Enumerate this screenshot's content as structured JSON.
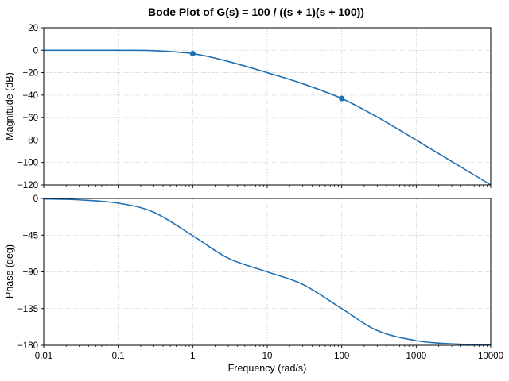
{
  "chart_data": {
    "title": "Bode Plot of G(s) = 100 / ((s + 1)(s + 100))",
    "xlabel": "Frequency (rad/s)",
    "x_scale": "log",
    "xlim": [
      0.01,
      10000
    ],
    "x_ticks": [
      0.01,
      0.1,
      1,
      10,
      100,
      1000,
      10000
    ],
    "x_tick_labels": [
      "0.01",
      "0.1",
      "1",
      "10",
      "100",
      "1000",
      "10000"
    ],
    "grid": true,
    "line_color": "#1f6fb4",
    "subplots": [
      {
        "type": "line",
        "name": "magnitude",
        "ylabel": "Magnitude (dB)",
        "ylim": [
          -120,
          20
        ],
        "y_ticks": [
          20,
          0,
          -20,
          -40,
          -60,
          -80,
          -100,
          -120
        ],
        "y_tick_labels": [
          "20",
          "0",
          "−20",
          "−40",
          "−60",
          "−80",
          "−100",
          "−120"
        ],
        "x": [
          0.01,
          0.1,
          0.3,
          1,
          3,
          10,
          30,
          100,
          300,
          1000,
          3000,
          10000
        ],
        "y": [
          0,
          -0.04,
          -0.4,
          -3.0,
          -10.0,
          -20.0,
          -29.9,
          -43.0,
          -59.5,
          -80.0,
          -99.1,
          -120.0
        ],
        "markers": [
          {
            "x": 1,
            "y": -3.0
          },
          {
            "x": 100,
            "y": -43.0
          }
        ]
      },
      {
        "type": "line",
        "name": "phase",
        "ylabel": "Phase (deg)",
        "ylim": [
          -180,
          0
        ],
        "y_ticks": [
          0,
          -45,
          -90,
          -135,
          -180
        ],
        "y_tick_labels": [
          "0",
          "−45",
          "−90",
          "−135",
          "−180"
        ],
        "x": [
          0.01,
          0.03,
          0.1,
          0.3,
          1,
          3,
          10,
          30,
          100,
          300,
          1000,
          3000,
          10000
        ],
        "y": [
          -0.6,
          -1.7,
          -5.8,
          -16.9,
          -45.6,
          -73.3,
          -90.0,
          -105.3,
          -135.0,
          -161.9,
          -174.3,
          -178.2,
          -179.4
        ]
      }
    ]
  }
}
